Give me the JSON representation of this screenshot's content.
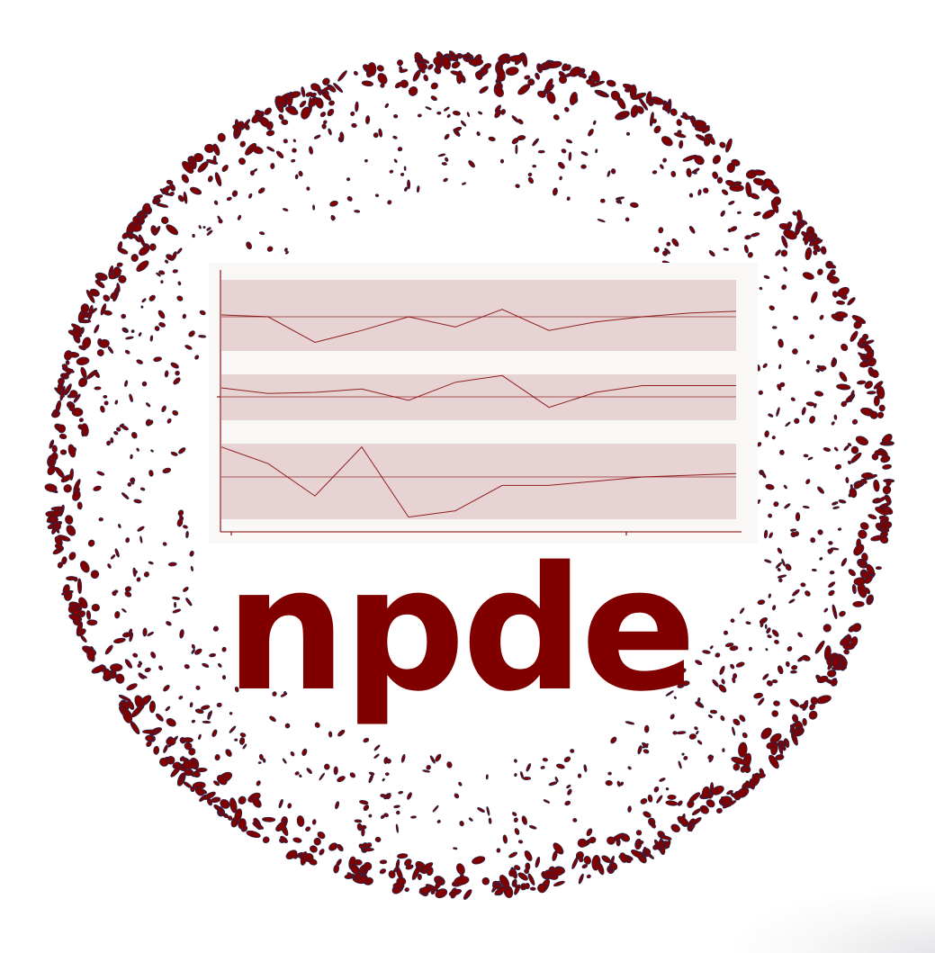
{
  "logo": {
    "wordmark": "npde",
    "colors": {
      "brand": "#800000",
      "band_fill": "#e8d3d4",
      "panel_bg": "#faf8f7",
      "speckle_edge": "#1c2a55"
    },
    "speckle_ring_icon": "ring-speckle-icon"
  },
  "chart_data": {
    "type": "line",
    "x": [
      1,
      2,
      3,
      4,
      5,
      6,
      7,
      8,
      9,
      10,
      11,
      12
    ],
    "grid": false,
    "legend": "none",
    "panels": [
      {
        "reference": 0,
        "band": [
          -1,
          1
        ],
        "values": [
          0.05,
          0.0,
          -0.75,
          -0.4,
          0.0,
          -0.3,
          0.2,
          -0.4,
          -0.15,
          0.0,
          0.1,
          0.15
        ]
      },
      {
        "reference": 0,
        "band": [
          -1,
          1
        ],
        "values": [
          0.4,
          0.15,
          0.2,
          0.35,
          -0.15,
          0.65,
          0.95,
          -0.45,
          0.2,
          0.5,
          0.5,
          0.5
        ]
      },
      {
        "reference": 0,
        "band": [
          -1,
          1
        ],
        "values": [
          0.9,
          0.4,
          -0.45,
          0.9,
          -0.95,
          -0.8,
          -0.2,
          -0.2,
          -0.1,
          0.0,
          0.05,
          0.1
        ]
      }
    ]
  }
}
